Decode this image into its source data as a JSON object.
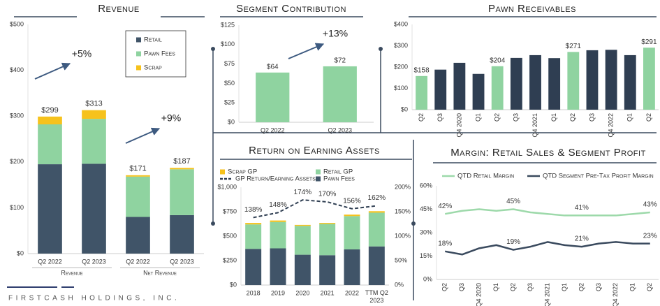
{
  "chart_data": [
    {
      "type": "bar",
      "title": "Revenue",
      "categories": [
        "Q2 2022",
        "Q2 2023",
        "Q2 2022",
        "Q2 2023"
      ],
      "group_labels": [
        "Revenue",
        "Net Revenue"
      ],
      "series": [
        {
          "name": "Retail",
          "color": "#405468",
          "values": [
            195,
            196,
            80,
            84
          ]
        },
        {
          "name": "Pawn Fees",
          "color": "#8fd3a0",
          "values": [
            87,
            98,
            88,
            100
          ]
        },
        {
          "name": "Scrap",
          "color": "#f6c21c",
          "values": [
            17,
            19,
            3,
            3
          ]
        }
      ],
      "totals": [
        299,
        313,
        171,
        187
      ],
      "total_labels": [
        "$299",
        "$313",
        "$171",
        "$187"
      ],
      "annotations": [
        "+5%",
        "+9%"
      ],
      "ylim": [
        0,
        500
      ],
      "yticks": [
        {
          "value": 0,
          "label": "$0"
        },
        {
          "value": 100,
          "label": "$100"
        },
        {
          "value": 200,
          "label": "$200"
        },
        {
          "value": 300,
          "label": "$300"
        },
        {
          "value": 400,
          "label": "$400"
        },
        {
          "value": 500,
          "label": "$500"
        }
      ],
      "grid": false
    },
    {
      "type": "bar",
      "title": "Segment Contribution",
      "categories": [
        "Q2 2022",
        "Q2 2023"
      ],
      "values": [
        64,
        72
      ],
      "value_labels": [
        "$64",
        "$72"
      ],
      "color": "#8fd3a0",
      "annotations": [
        "+13%"
      ],
      "ylim": [
        0,
        125
      ],
      "yticks": [
        {
          "value": 0,
          "label": "$0"
        },
        {
          "value": 25,
          "label": "$25"
        },
        {
          "value": 50,
          "label": "$50"
        },
        {
          "value": 75,
          "label": "$75"
        },
        {
          "value": 100,
          "label": "$100"
        },
        {
          "value": 125,
          "label": "$125"
        }
      ],
      "grid": false
    },
    {
      "type": "bar",
      "title": "Pawn Receivables",
      "categories": [
        "Q2",
        "Q3",
        "Q4 2020",
        "Q1",
        "Q2",
        "Q3",
        "Q4 2021",
        "Q1",
        "Q2",
        "Q3",
        "Q4 2022",
        "Q1",
        "Q2"
      ],
      "values": [
        158,
        188,
        220,
        168,
        204,
        243,
        256,
        242,
        271,
        279,
        281,
        256,
        291
      ],
      "value_labels": [
        "$158",
        null,
        null,
        null,
        "$204",
        null,
        null,
        null,
        "$271",
        null,
        null,
        null,
        "$291"
      ],
      "colors": [
        "#8fd3a0",
        "#2f3e52",
        "#2f3e52",
        "#2f3e52",
        "#8fd3a0",
        "#2f3e52",
        "#2f3e52",
        "#2f3e52",
        "#8fd3a0",
        "#2f3e52",
        "#2f3e52",
        "#2f3e52",
        "#8fd3a0"
      ],
      "ylim": [
        0,
        400
      ],
      "yticks": [
        {
          "value": 0,
          "label": "$0"
        },
        {
          "value": 100,
          "label": "$100"
        },
        {
          "value": 200,
          "label": "$200"
        },
        {
          "value": 300,
          "label": "$300"
        },
        {
          "value": 400,
          "label": "$400"
        }
      ],
      "grid": false
    },
    {
      "type": "bar",
      "title": "Return on Earning Assets",
      "categories": [
        "2018",
        "2019",
        "2020",
        "2021",
        "2022",
        "TTM Q2 2023"
      ],
      "series": [
        {
          "name": "Pawn Fees",
          "color": "#405468",
          "values": [
            370,
            375,
            310,
            305,
            365,
            395
          ]
        },
        {
          "name": "Retail GP",
          "color": "#8fd3a0",
          "values": [
            250,
            270,
            295,
            320,
            340,
            345
          ]
        },
        {
          "name": "Scrap GP",
          "color": "#f6c21c",
          "values": [
            15,
            15,
            10,
            10,
            15,
            15
          ]
        },
        {
          "name": "GP Return/Earning Assets",
          "type": "line",
          "axis": "y2",
          "dash": true,
          "color": "#2f3e52",
          "values": [
            138,
            148,
            174,
            170,
            156,
            162
          ],
          "value_labels": [
            "138%",
            "148%",
            "174%",
            "170%",
            "156%",
            "162%"
          ]
        }
      ],
      "ylim": [
        0,
        1000
      ],
      "yticks": [
        {
          "value": 0,
          "label": "$0"
        },
        {
          "value": 250,
          "label": "$250"
        },
        {
          "value": 500,
          "label": "$500"
        },
        {
          "value": 750,
          "label": "$750"
        },
        {
          "value": 1000,
          "label": "$1,000"
        }
      ],
      "y2lim": [
        0,
        200
      ],
      "y2ticks": [
        {
          "value": 0,
          "label": "0%"
        },
        {
          "value": 50,
          "label": "50%"
        },
        {
          "value": 100,
          "label": "100%"
        },
        {
          "value": 150,
          "label": "150%"
        },
        {
          "value": 200,
          "label": "200%"
        }
      ],
      "grid": false
    },
    {
      "type": "line",
      "title": "Margin: Retail Sales & Segment Profit",
      "categories": [
        "Q2",
        "Q3",
        "Q4 2020",
        "Q1",
        "Q2",
        "Q3",
        "Q4 2021",
        "Q1",
        "Q2",
        "Q3",
        "Q4 2022",
        "Q1",
        "Q2"
      ],
      "series": [
        {
          "name": "QTD Retail Margin",
          "color": "#9dd9aa",
          "values": [
            42,
            44,
            45,
            44,
            45,
            43,
            42,
            41,
            41,
            41,
            41,
            42,
            43
          ],
          "value_labels": [
            "42%",
            null,
            null,
            null,
            "45%",
            null,
            null,
            null,
            "41%",
            null,
            null,
            null,
            "43%"
          ]
        },
        {
          "name": "QTD Segment Pre-Tax Profit Margin",
          "color": "#3a4a5e",
          "values": [
            18,
            16,
            20,
            22,
            19,
            21,
            24,
            22,
            21,
            23,
            24,
            23,
            23
          ],
          "value_labels": [
            "18%",
            null,
            null,
            null,
            "19%",
            null,
            null,
            null,
            "21%",
            null,
            null,
            null,
            "23%"
          ]
        }
      ],
      "ylim": [
        0,
        60
      ],
      "yticks": [
        {
          "value": 0,
          "label": "0%"
        },
        {
          "value": 15,
          "label": "15%"
        },
        {
          "value": 30,
          "label": "30%"
        },
        {
          "value": 45,
          "label": "45%"
        },
        {
          "value": 60,
          "label": "60%"
        }
      ],
      "grid": false
    }
  ],
  "footer": {
    "company": "FIRSTCASH HOLDINGS, INC."
  }
}
